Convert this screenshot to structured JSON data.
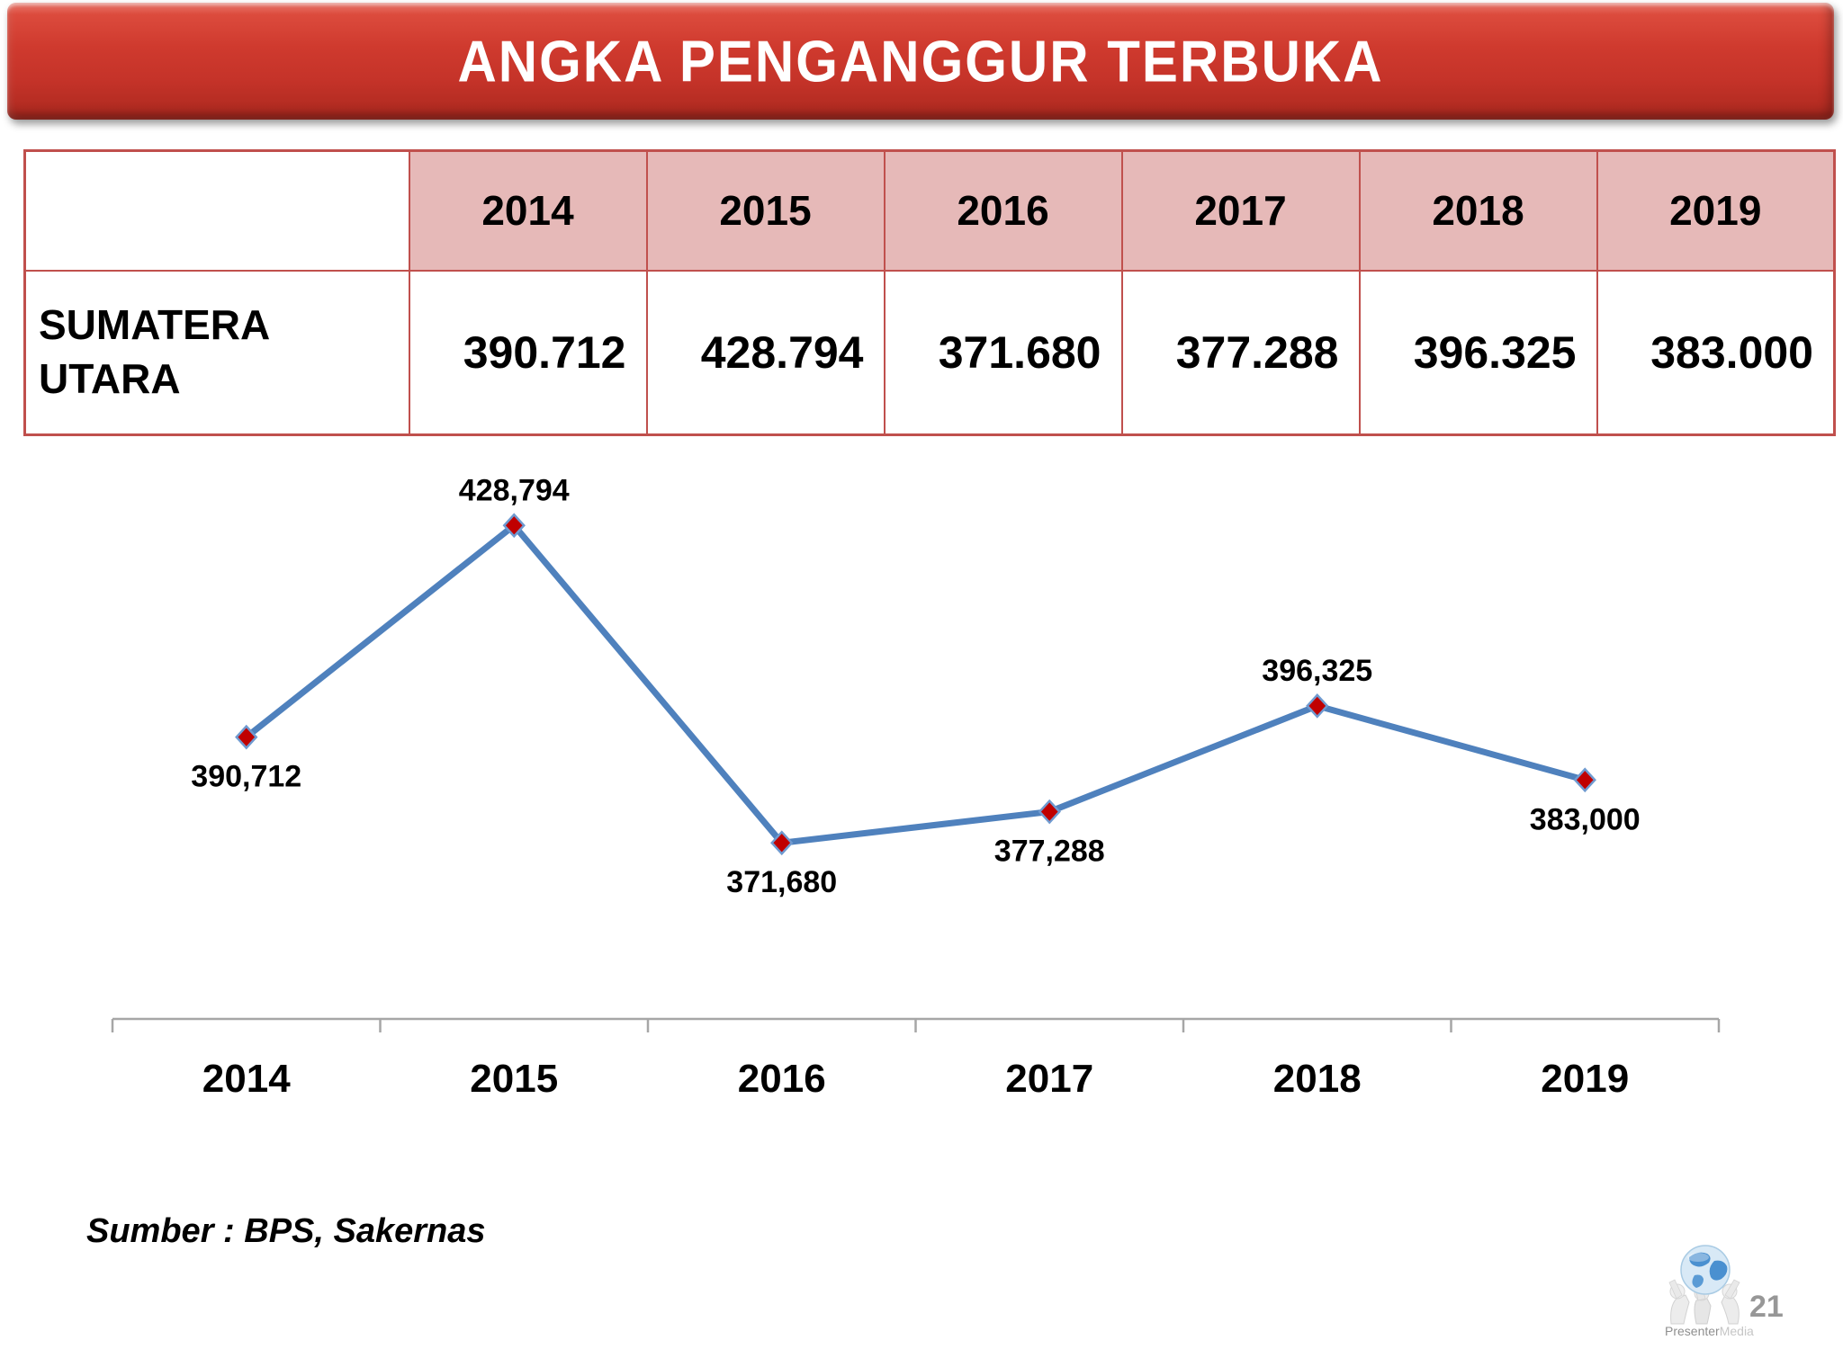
{
  "banner": {
    "title": "ANGKA PENGANGGUR TERBUKA",
    "bg_color": "#cf3a2e",
    "text_color": "#ffffff"
  },
  "table": {
    "region_line1": "SUMATERA",
    "region_line2": "UTARA",
    "years": [
      "2014",
      "2015",
      "2016",
      "2017",
      "2018",
      "2019"
    ],
    "values": [
      "390.712",
      "428.794",
      "371.680",
      "377.288",
      "396.325",
      "383.000"
    ],
    "header_bg": "#e6b9b8",
    "border_color": "#c0504d"
  },
  "chart_data": {
    "type": "line",
    "title": "",
    "categories": [
      "2014",
      "2015",
      "2016",
      "2017",
      "2018",
      "2019"
    ],
    "series": [
      {
        "name": "SUMATERA UTARA",
        "values": [
          390712,
          428794,
          371680,
          377288,
          396325,
          383000
        ]
      }
    ],
    "data_labels": [
      "390,712",
      "428,794",
      "371,680",
      "377,288",
      "396,325",
      "383,000"
    ],
    "label_position": [
      "below",
      "above",
      "below",
      "below",
      "above",
      "below"
    ],
    "xlabel": "",
    "ylabel": "",
    "ylim": [
      340000,
      440000
    ],
    "gridlines": false,
    "legend": "none",
    "line_color": "#4f81bd",
    "marker_color": "#c00000",
    "marker_stroke": "#6f9ad0",
    "axis_color": "#a6a6a6",
    "label_color": "#000000"
  },
  "footer": {
    "source_note": "Sumber : BPS, Sakernas",
    "page_number": "21",
    "watermark_part1": "Presenter",
    "watermark_part2": "Media"
  }
}
